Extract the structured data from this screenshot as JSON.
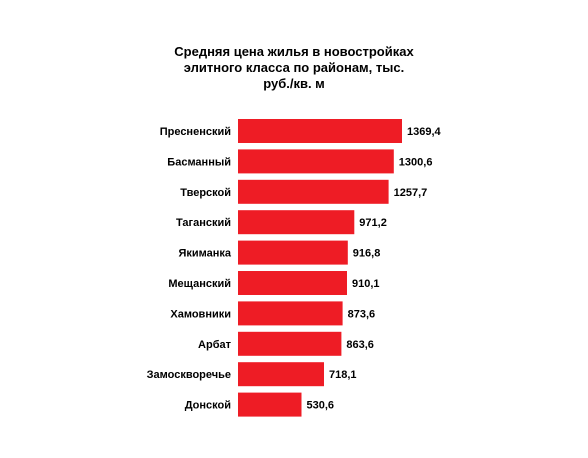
{
  "title_lines": [
    "Средняя цена жилья в новостройках",
    "элитного  класса по районам, тыс.",
    "руб./кв. м"
  ],
  "bar_color": "#ee1c25",
  "chart_data": {
    "type": "bar",
    "orientation": "horizontal",
    "title": "Средняя цена жилья в новостройках элитного  класса по районам, тыс. руб./кв. м",
    "categories": [
      "Пресненский",
      "Басманный",
      "Тверской",
      "Таганский",
      "Якиманка",
      "Мещанский",
      "Хамовники",
      "Арбат",
      "Замоскворечье",
      "Донской"
    ],
    "values": [
      1369.4,
      1300.6,
      1257.7,
      971.2,
      916.8,
      910.1,
      873.6,
      863.6,
      718.1,
      530.6
    ],
    "value_labels": [
      "1369,4",
      "1300,6",
      "1257,7",
      "971,2",
      "916,8",
      "910,1",
      "873,6",
      "863,6",
      "718,1",
      "530,6"
    ],
    "xlim": [
      0,
      1369.4
    ],
    "grid": false,
    "legend": "none"
  }
}
